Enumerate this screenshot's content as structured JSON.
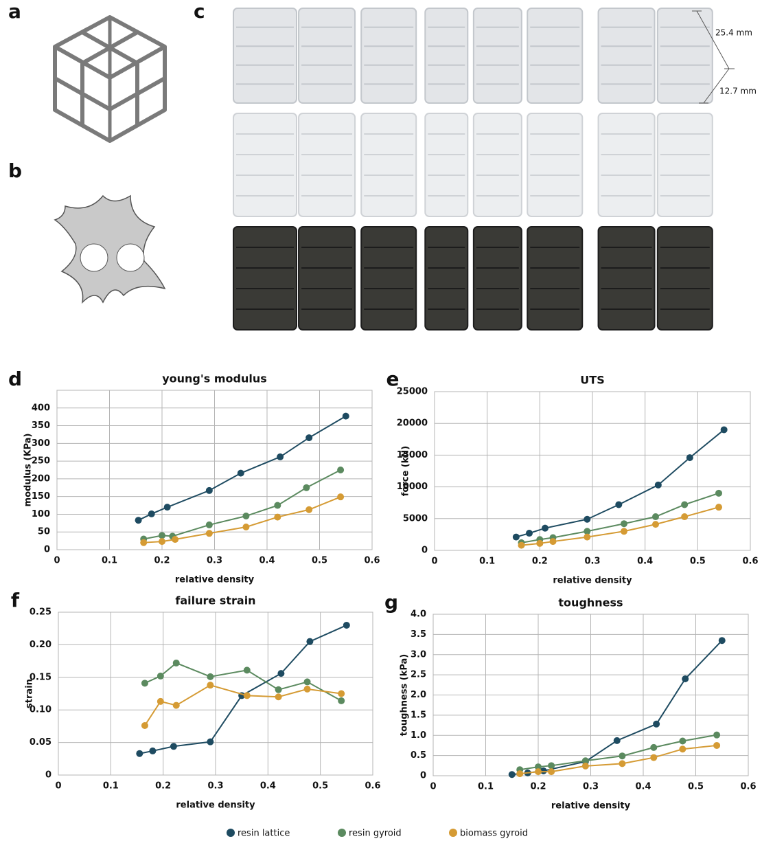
{
  "panel_labels": [
    "a",
    "b",
    "c"
  ],
  "dimensions": [
    "25.4 mm",
    "12.7 mm"
  ],
  "legend": [
    {
      "name": "resin lattice",
      "color": "#1e4b61"
    },
    {
      "name": "resin gyroid",
      "color": "#5b8a5f"
    },
    {
      "name": "biomass gyroid",
      "color": "#d59b34"
    }
  ],
  "chart_data": [
    {
      "type": "line",
      "panel": "d",
      "title": "young's modulus",
      "xlabel": "relative density",
      "ylabel": "modulus (KPa)",
      "xlim": [
        0,
        0.6
      ],
      "xticks": [
        0,
        0.1,
        0.2,
        0.3,
        0.4,
        0.5,
        0.6
      ],
      "ylim": [
        0,
        450
      ],
      "yticks": [
        0,
        50,
        100,
        150,
        200,
        250,
        300,
        350,
        400
      ],
      "grid": true,
      "series": [
        {
          "x": [
            0.155,
            0.18,
            0.21,
            0.29,
            0.35,
            0.425,
            0.48,
            0.55
          ],
          "values": [
            83,
            101,
            120,
            167,
            216,
            262,
            316,
            377
          ]
        },
        {
          "x": [
            0.165,
            0.2,
            0.22,
            0.29,
            0.36,
            0.42,
            0.475,
            0.54
          ],
          "values": [
            30,
            40,
            38,
            70,
            95,
            125,
            175,
            225
          ]
        },
        {
          "x": [
            0.165,
            0.2,
            0.225,
            0.29,
            0.36,
            0.42,
            0.48,
            0.54
          ],
          "values": [
            20,
            23,
            29,
            46,
            64,
            92,
            113,
            149
          ]
        }
      ]
    },
    {
      "type": "line",
      "panel": "e",
      "title": "UTS",
      "xlabel": "relative density",
      "ylabel": "force (kN)",
      "xlim": [
        0,
        0.6
      ],
      "xticks": [
        0,
        0.1,
        0.2,
        0.3,
        0.4,
        0.5,
        0.6
      ],
      "ylim": [
        0,
        25000
      ],
      "yticks": [
        0,
        5000,
        10000,
        15000,
        20000,
        25000
      ],
      "grid": true,
      "series": [
        {
          "x": [
            0.155,
            0.18,
            0.21,
            0.29,
            0.35,
            0.425,
            0.485,
            0.55
          ],
          "values": [
            2100,
            2700,
            3500,
            4900,
            7200,
            10300,
            14600,
            19000
          ]
        },
        {
          "x": [
            0.165,
            0.2,
            0.225,
            0.29,
            0.36,
            0.42,
            0.475,
            0.54
          ],
          "values": [
            1200,
            1700,
            2000,
            3000,
            4200,
            5300,
            7200,
            9000
          ]
        },
        {
          "x": [
            0.165,
            0.2,
            0.225,
            0.29,
            0.36,
            0.42,
            0.475,
            0.54
          ],
          "values": [
            800,
            1100,
            1400,
            2100,
            3000,
            4100,
            5300,
            6800
          ]
        }
      ]
    },
    {
      "type": "line",
      "panel": "f",
      "title": "failure strain",
      "xlabel": "relative density",
      "ylabel": "strain",
      "xlim": [
        0,
        0.6
      ],
      "xticks": [
        0,
        0.1,
        0.2,
        0.3,
        0.4,
        0.5,
        0.6
      ],
      "ylim": [
        0,
        0.25
      ],
      "yticks": [
        0,
        0.05,
        {
          "value": 0.1,
          "label": "0.10"
        },
        0.15,
        {
          "value": 0.2,
          "label": "0.20"
        },
        0.25
      ],
      "grid": true,
      "series": [
        {
          "x": [
            0.155,
            0.18,
            0.22,
            0.29,
            0.35,
            0.425,
            0.48,
            0.55
          ],
          "values": [
            0.033,
            0.037,
            0.044,
            0.051,
            0.122,
            0.156,
            0.205,
            0.23
          ]
        },
        {
          "x": [
            0.165,
            0.195,
            0.225,
            0.29,
            0.36,
            0.42,
            0.475,
            0.54
          ],
          "values": [
            0.141,
            0.152,
            0.172,
            0.151,
            0.161,
            0.131,
            0.143,
            0.114
          ]
        },
        {
          "x": [
            0.165,
            0.195,
            0.225,
            0.29,
            0.36,
            0.42,
            0.475,
            0.54
          ],
          "values": [
            0.076,
            0.113,
            0.107,
            0.138,
            0.122,
            0.12,
            0.132,
            0.125
          ]
        }
      ]
    },
    {
      "type": "line",
      "panel": "g",
      "title": "toughness",
      "xlabel": "relative density",
      "ylabel": "toughness (kPa)",
      "xlim": [
        0,
        0.6
      ],
      "xticks": [
        0,
        0.1,
        0.2,
        0.3,
        0.4,
        0.5,
        0.6
      ],
      "ylim": [
        0,
        4
      ],
      "yticks": [
        0,
        0.5,
        {
          "value": 1,
          "label": "1.0"
        },
        1.5,
        {
          "value": 2,
          "label": "2.0"
        },
        2.5,
        {
          "value": 3,
          "label": "3.0"
        },
        3.5,
        {
          "value": 4,
          "label": "4.0"
        }
      ],
      "grid": true,
      "series": [
        {
          "x": [
            0.15,
            0.18,
            0.21,
            0.29,
            0.35,
            0.425,
            0.48,
            0.55
          ],
          "values": [
            0.03,
            0.07,
            0.12,
            0.35,
            0.87,
            1.28,
            2.4,
            3.35
          ]
        },
        {
          "x": [
            0.165,
            0.2,
            0.225,
            0.29,
            0.36,
            0.42,
            0.475,
            0.54
          ],
          "values": [
            0.15,
            0.22,
            0.25,
            0.37,
            0.49,
            0.7,
            0.86,
            1.01
          ]
        },
        {
          "x": [
            0.165,
            0.2,
            0.225,
            0.29,
            0.36,
            0.42,
            0.475,
            0.54
          ],
          "values": [
            0.05,
            0.1,
            0.1,
            0.24,
            0.3,
            0.45,
            0.66,
            0.75
          ]
        }
      ]
    }
  ]
}
